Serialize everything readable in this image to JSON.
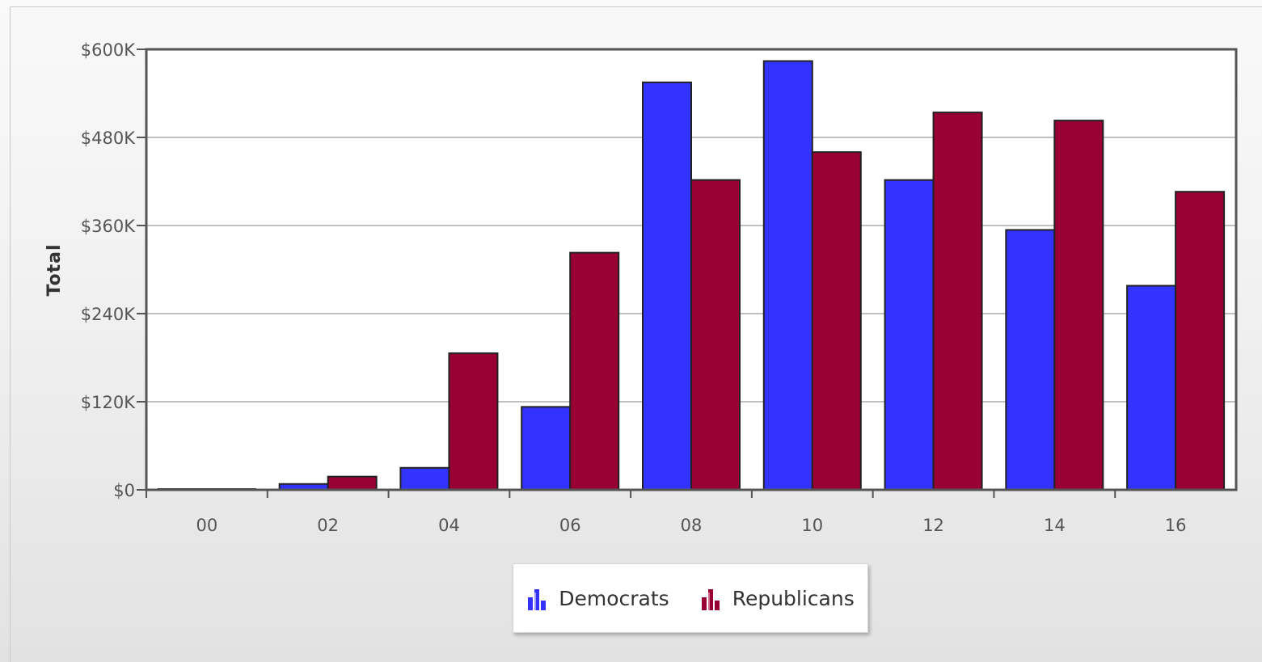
{
  "chart_data": {
    "type": "bar",
    "categories": [
      "00",
      "02",
      "04",
      "06",
      "08",
      "10",
      "12",
      "14",
      "16"
    ],
    "series": [
      {
        "name": "Democrats",
        "color": "#3333ff",
        "values": [
          1000,
          8000,
          30000,
          113000,
          555000,
          584000,
          422000,
          354000,
          278000
        ]
      },
      {
        "name": "Republicans",
        "color": "#990033",
        "values": [
          1000,
          18000,
          186000,
          323000,
          422000,
          460000,
          514000,
          503000,
          406000
        ]
      }
    ],
    "ylabel": "Total",
    "xlabel": "",
    "ylim": [
      0,
      600000
    ],
    "yticks": [
      0,
      120000,
      240000,
      360000,
      480000,
      600000
    ],
    "ytick_labels": [
      "$0",
      "$120K",
      "$240K",
      "$360K",
      "$480K",
      "$600K"
    ],
    "grid": true,
    "legend_position": "bottom-center"
  }
}
